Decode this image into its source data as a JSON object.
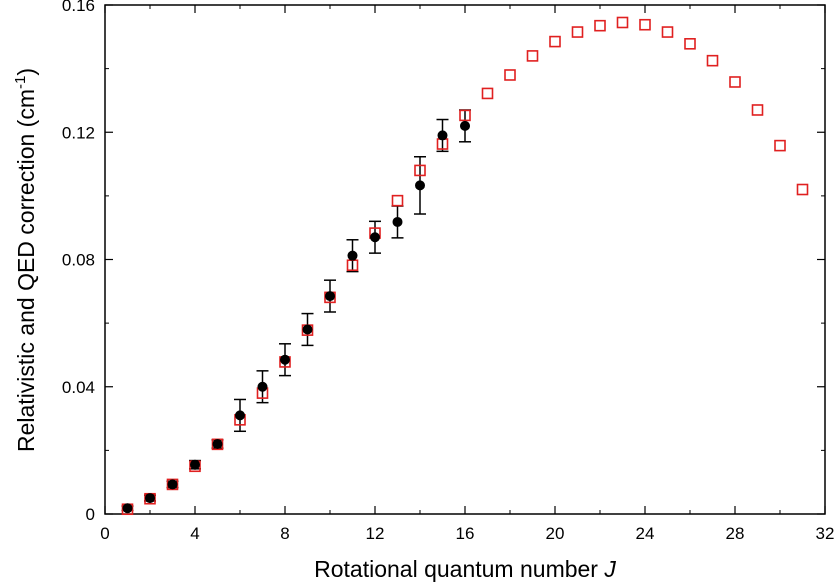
{
  "chart_data": {
    "type": "scatter",
    "title": "",
    "xlabel": "Rotational quantum number",
    "xlabel_symbol": "J",
    "ylabel": "Relativistic and QED correction (cm",
    "ylabel_superscript": "-1",
    "ylabel_close": ")",
    "xlim": [
      0,
      32
    ],
    "ylim": [
      0,
      0.16
    ],
    "xticks": [
      0,
      4,
      8,
      12,
      16,
      20,
      24,
      28,
      32
    ],
    "xtick_labels": [
      "0",
      "4",
      "8",
      "12",
      "16",
      "20",
      "24",
      "28",
      "32"
    ],
    "yticks": [
      0,
      0.04,
      0.08,
      0.12,
      0.16
    ],
    "ytick_labels": [
      "0",
      "0.04",
      "0.08",
      "0.12",
      "0.16"
    ],
    "grid": false,
    "legend": "none",
    "series": [
      {
        "marker": "open-square",
        "color": "#e02020",
        "x": [
          1,
          2,
          3,
          4,
          5,
          6,
          7,
          8,
          9,
          10,
          11,
          12,
          13,
          14,
          15,
          16,
          17,
          18,
          19,
          20,
          21,
          22,
          23,
          24,
          25,
          26,
          27,
          28,
          29,
          30,
          31
        ],
        "y": [
          0.0015,
          0.0048,
          0.0093,
          0.015,
          0.0219,
          0.0296,
          0.038,
          0.0478,
          0.0578,
          0.0681,
          0.0782,
          0.0883,
          0.0985,
          0.108,
          0.1163,
          0.1253,
          0.1322,
          0.138,
          0.144,
          0.1485,
          0.1515,
          0.1535,
          0.1545,
          0.1538,
          0.1515,
          0.1478,
          0.1425,
          0.1358,
          0.127,
          0.1158,
          0.102
        ]
      },
      {
        "marker": "filled-circle",
        "color": "#000000",
        "x": [
          1,
          2,
          3,
          4,
          5,
          6,
          7,
          8,
          9,
          10,
          11,
          12,
          13,
          14,
          15,
          16
        ],
        "y": [
          0.0018,
          0.005,
          0.0093,
          0.0155,
          0.022,
          0.031,
          0.04,
          0.0485,
          0.058,
          0.0685,
          0.0812,
          0.087,
          0.0918,
          0.1033,
          0.119,
          0.122
        ],
        "yerr": [
          0.0007,
          0.0009,
          0.001,
          0.0013,
          0.0013,
          0.005,
          0.005,
          0.005,
          0.005,
          0.005,
          0.005,
          0.005,
          0.005,
          0.009,
          0.005,
          0.005
        ]
      }
    ]
  }
}
